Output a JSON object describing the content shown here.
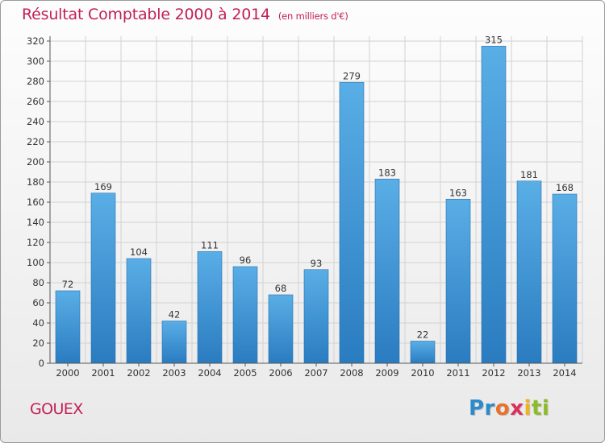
{
  "chart_data": {
    "type": "bar",
    "title": "Résultat Comptable 2000 à 2014",
    "subtitle": "(en milliers d'€)",
    "categories": [
      "2000",
      "2001",
      "2002",
      "2003",
      "2004",
      "2005",
      "2006",
      "2007",
      "2008",
      "2009",
      "2010",
      "2011",
      "2012",
      "2013",
      "2014"
    ],
    "values": [
      72,
      169,
      104,
      42,
      111,
      96,
      68,
      93,
      279,
      183,
      22,
      163,
      315,
      181,
      168
    ],
    "ylim": [
      0,
      320
    ],
    "yticks": [
      0,
      20,
      40,
      60,
      80,
      100,
      120,
      140,
      160,
      180,
      200,
      220,
      240,
      260,
      280,
      300,
      320
    ],
    "grid": true,
    "bar_color": "#3a93d8",
    "legend": "none"
  },
  "footer": {
    "place": "GOUEX",
    "logo": [
      "Pr",
      "o",
      "x",
      "i",
      "ti"
    ]
  },
  "colors": {
    "accent": "#c21e57"
  }
}
